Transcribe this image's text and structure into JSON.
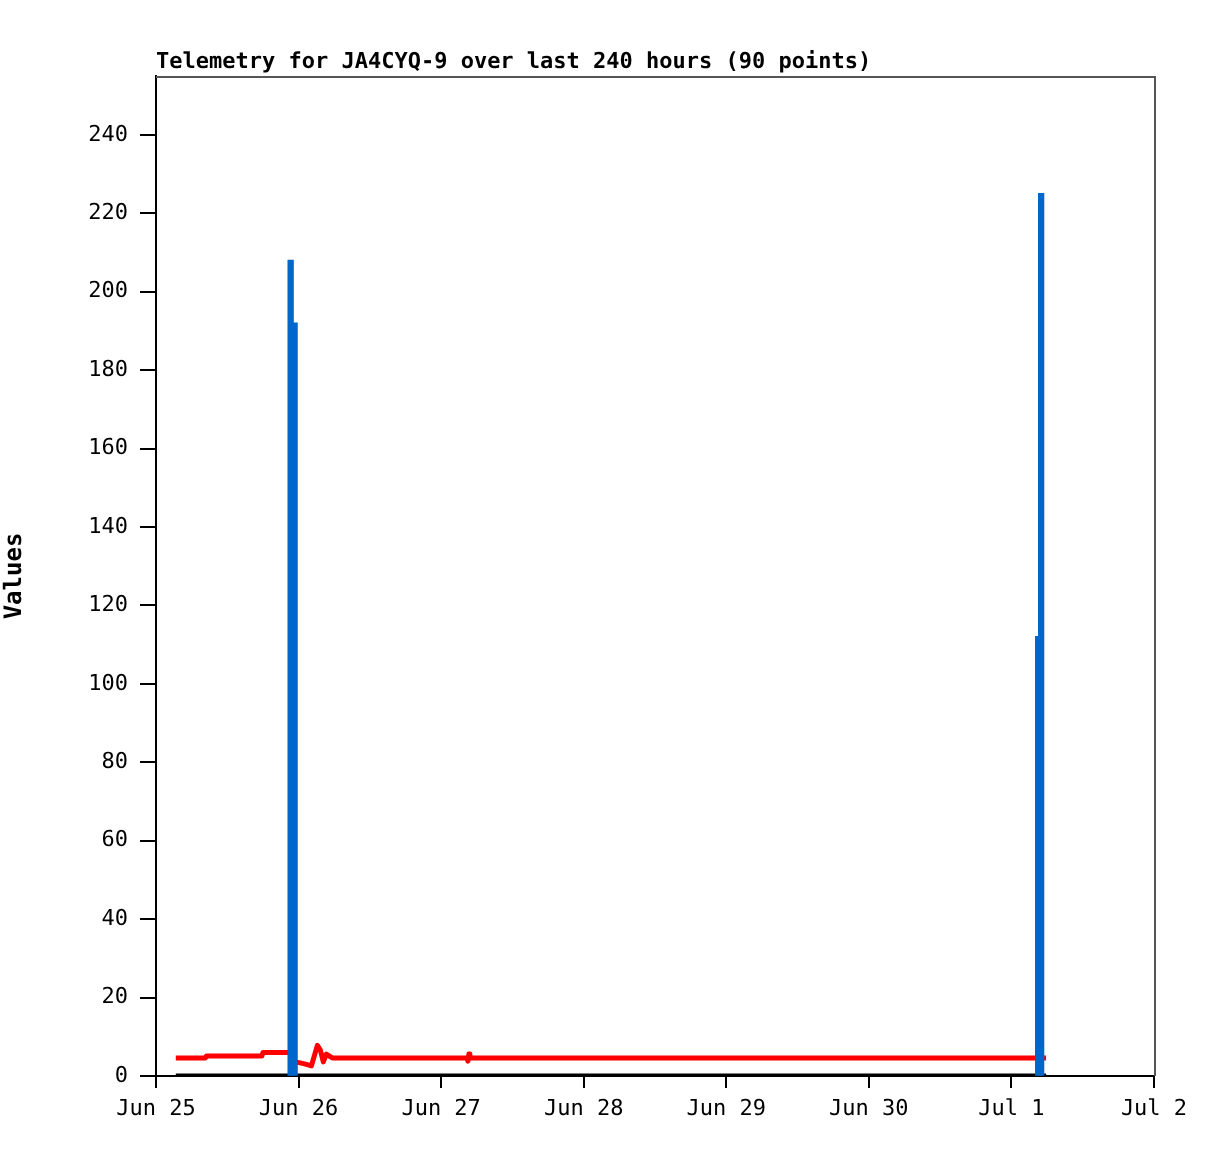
{
  "chart_data": {
    "type": "line",
    "title": "Telemetry for JA4CYQ-9 over last 240 hours (90 points)",
    "ylabel": "Values",
    "xlim": [
      "--06-25",
      "--07-02"
    ],
    "xticks": [
      {
        "value": "--06-25",
        "label": "Jun 25"
      },
      {
        "value": "--06-26",
        "label": "Jun 26"
      },
      {
        "value": "--06-27",
        "label": "Jun 27"
      },
      {
        "value": "--06-28",
        "label": "Jun 28"
      },
      {
        "value": "--06-29",
        "label": "Jun 29"
      },
      {
        "value": "--06-30",
        "label": "Jun 30"
      },
      {
        "value": "--07-01",
        "label": "Jul 1"
      },
      {
        "value": "--07-02",
        "label": "Jul 2"
      }
    ],
    "ylim": [
      0,
      255
    ],
    "yticks": [
      0,
      20,
      40,
      60,
      80,
      100,
      120,
      140,
      160,
      180,
      200,
      220,
      240
    ],
    "grid": false,
    "legend": false,
    "marker": "none",
    "series": [
      {
        "color": "#000000",
        "x": [
          "--06-25T03:20",
          "--07-01T05:50"
        ],
        "values": [
          0,
          0
        ]
      },
      {
        "color": "#ff0000",
        "x": [
          "--06-25T03:20",
          "--06-25T08:20",
          "--06-25T08:30",
          "--06-25T17:50",
          "--06-25T18:00",
          "--06-25T22:30",
          "--06-25T23:30",
          "--06-26T01:00",
          "--06-26T02:10",
          "--06-26T03:10",
          "--06-26T03:40",
          "--06-26T04:10",
          "--06-26T04:40",
          "--06-26T05:40",
          "--06-27T04:20",
          "--06-27T04:30",
          "--06-27T04:40",
          "--06-27T04:50",
          "--07-01T05:50"
        ],
        "values": [
          4.6,
          4.6,
          5.1,
          5.1,
          6.0,
          6.0,
          3.6,
          3.1,
          2.6,
          7.8,
          6.6,
          3.6,
          5.6,
          4.6,
          4.6,
          3.8,
          5.6,
          4.6,
          4.6
        ]
      },
      {
        "type": "bar",
        "color": "#0066cc",
        "x": [
          "--06-25T22:40",
          "--06-25T23:20",
          "--07-01T04:30",
          "--07-01T05:00"
        ],
        "values": [
          208,
          192,
          112,
          225
        ]
      }
    ]
  }
}
